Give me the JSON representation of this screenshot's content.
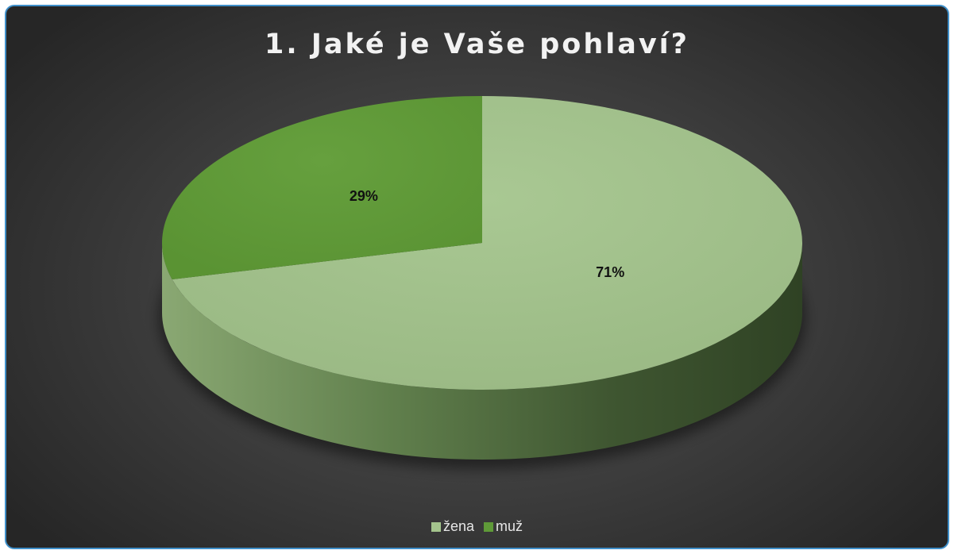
{
  "chart_data": {
    "type": "pie",
    "title": "1. Jaké je Vaše pohlaví?",
    "categories": [
      "žena",
      "muž"
    ],
    "values": [
      71,
      29
    ],
    "data_labels": [
      "71%",
      "29%"
    ],
    "colors": [
      "#a4c48d",
      "#5f9a38"
    ],
    "legend_position": "bottom",
    "three_d": true
  },
  "legend": {
    "items": [
      {
        "label": "žena",
        "color": "#a4c48d"
      },
      {
        "label": "muž",
        "color": "#5f9a38"
      }
    ]
  }
}
